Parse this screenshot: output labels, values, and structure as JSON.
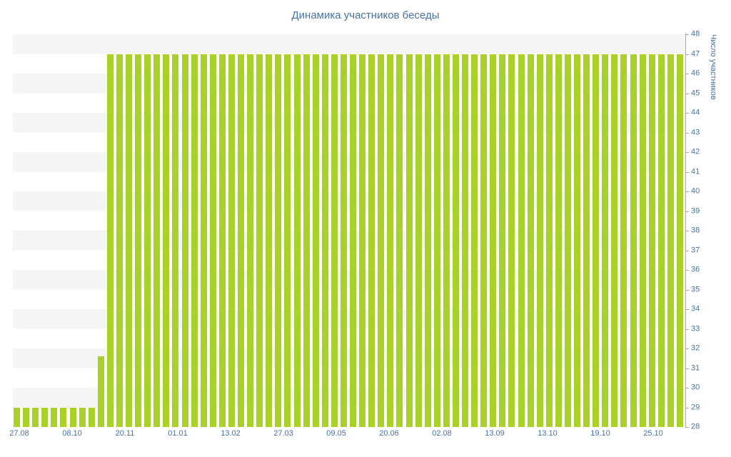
{
  "title": "Динамика участников беседы",
  "colors": {
    "title_text": "#4872a3",
    "tick_text": "#4872a3",
    "bar": "#a9d128",
    "stripe": "#f5f5f5",
    "axis": "#a8a8a8"
  },
  "chart_data": {
    "type": "bar",
    "title": "Динамика участников беседы",
    "xlabel": "",
    "ylabel": "Число участников",
    "ylim": [
      28,
      48
    ],
    "y_ticks": [
      28,
      29,
      30,
      31,
      32,
      33,
      34,
      35,
      36,
      37,
      38,
      39,
      40,
      41,
      42,
      43,
      44,
      45,
      46,
      47,
      48
    ],
    "x_tick_labels": [
      "27.08",
      "08.10",
      "20.11",
      "01.01",
      "13.02",
      "27.03",
      "09.05",
      "20.06",
      "02.08",
      "13.09",
      "13.10",
      "19.10",
      "25.10"
    ],
    "grid": "alternating horizontal stripes, one unit tall",
    "legend": "none",
    "y_axis_position": "right",
    "values": [
      29,
      29,
      29,
      29,
      29,
      29,
      29,
      29,
      29,
      31.6,
      47,
      47,
      47,
      47,
      47,
      47,
      47,
      47,
      47,
      47,
      47,
      47,
      47,
      47,
      47,
      47,
      47,
      47,
      47,
      47,
      47,
      47,
      47,
      47,
      47,
      47,
      47,
      47,
      47,
      47,
      47,
      47,
      47,
      47,
      47,
      47,
      47,
      47,
      47,
      47,
      47,
      47,
      47,
      47,
      47,
      47,
      47,
      47,
      47,
      47,
      47,
      47,
      47,
      47,
      47,
      47,
      47,
      47,
      47,
      47,
      47,
      47
    ]
  }
}
